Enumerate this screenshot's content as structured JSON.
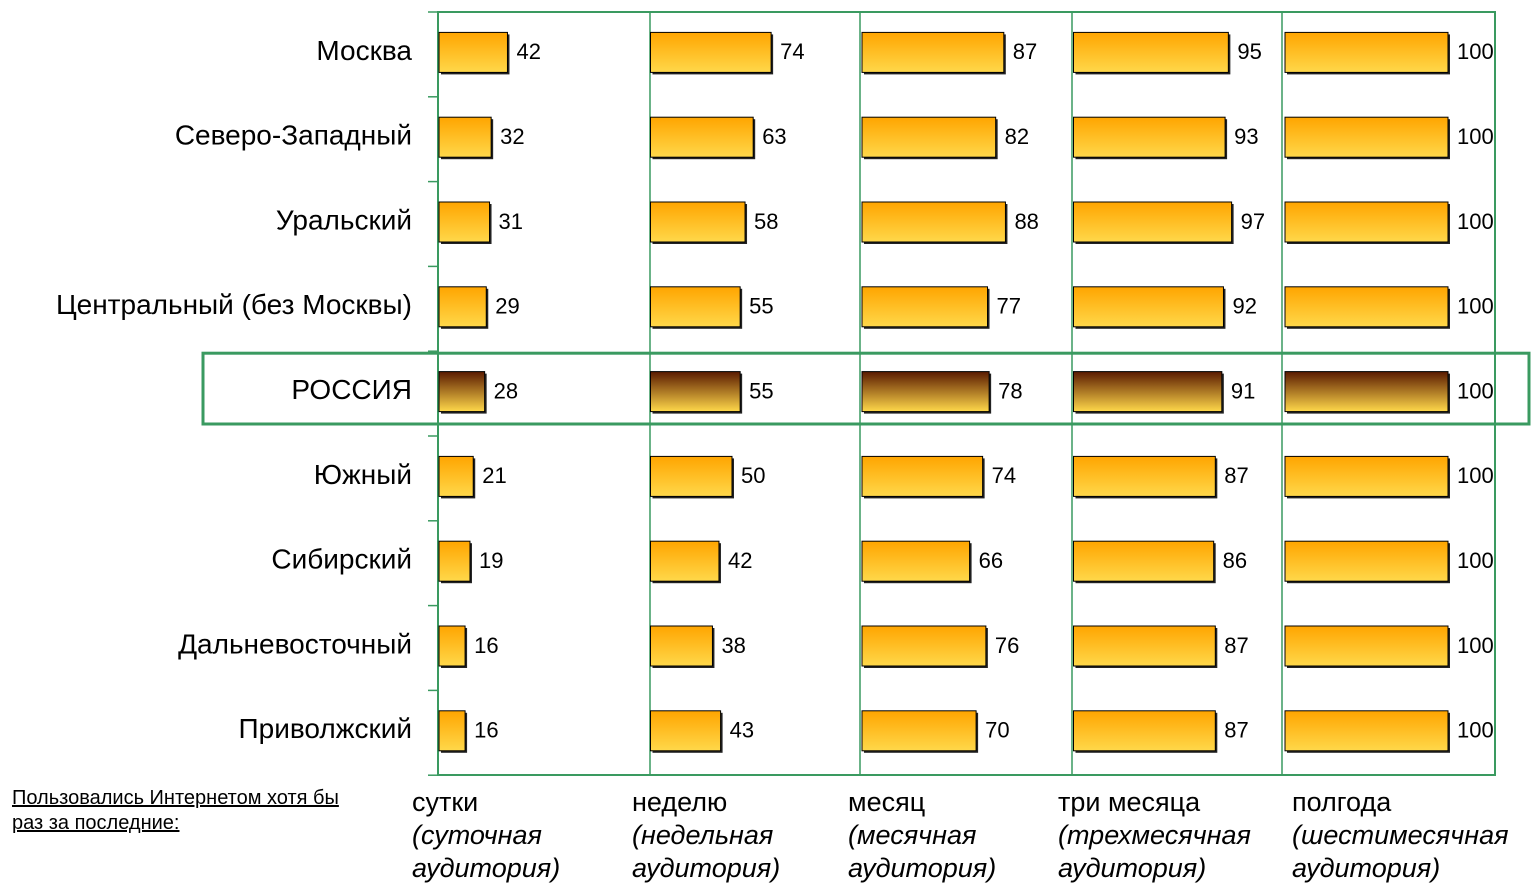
{
  "chart_data": {
    "type": "bar",
    "note": "Пользовались Интернетом хотя бы раз за последние:",
    "categories": [
      "Москва",
      "Северо-Западный",
      "Уральский",
      "Центральный (без Москвы)",
      "РОССИЯ",
      "Южный",
      "Сибирский",
      "Дальневосточный",
      "Приволжский"
    ],
    "highlight_category": 4,
    "xlim": [
      0,
      100
    ],
    "color": "#ffa500",
    "highlight_color": "#5a1a00",
    "series": [
      {
        "name": "сутки",
        "subtitle": "(суточная аудитория)",
        "values": [
          42,
          32,
          31,
          29,
          28,
          21,
          19,
          16,
          16
        ]
      },
      {
        "name": "неделю",
        "subtitle": "(недельная аудитория)",
        "values": [
          74,
          63,
          58,
          55,
          55,
          50,
          42,
          38,
          43
        ]
      },
      {
        "name": "месяц",
        "subtitle": "(месячная аудитория)",
        "values": [
          87,
          82,
          88,
          77,
          78,
          74,
          66,
          76,
          70
        ]
      },
      {
        "name": "три месяца",
        "subtitle": "(трехмесячная аудитория)",
        "values": [
          95,
          93,
          97,
          92,
          91,
          87,
          86,
          87,
          87
        ]
      },
      {
        "name": "полгода",
        "subtitle": "(шестимесячная аудитория)",
        "values": [
          100,
          100,
          100,
          100,
          100,
          100,
          100,
          100,
          100
        ]
      }
    ]
  }
}
